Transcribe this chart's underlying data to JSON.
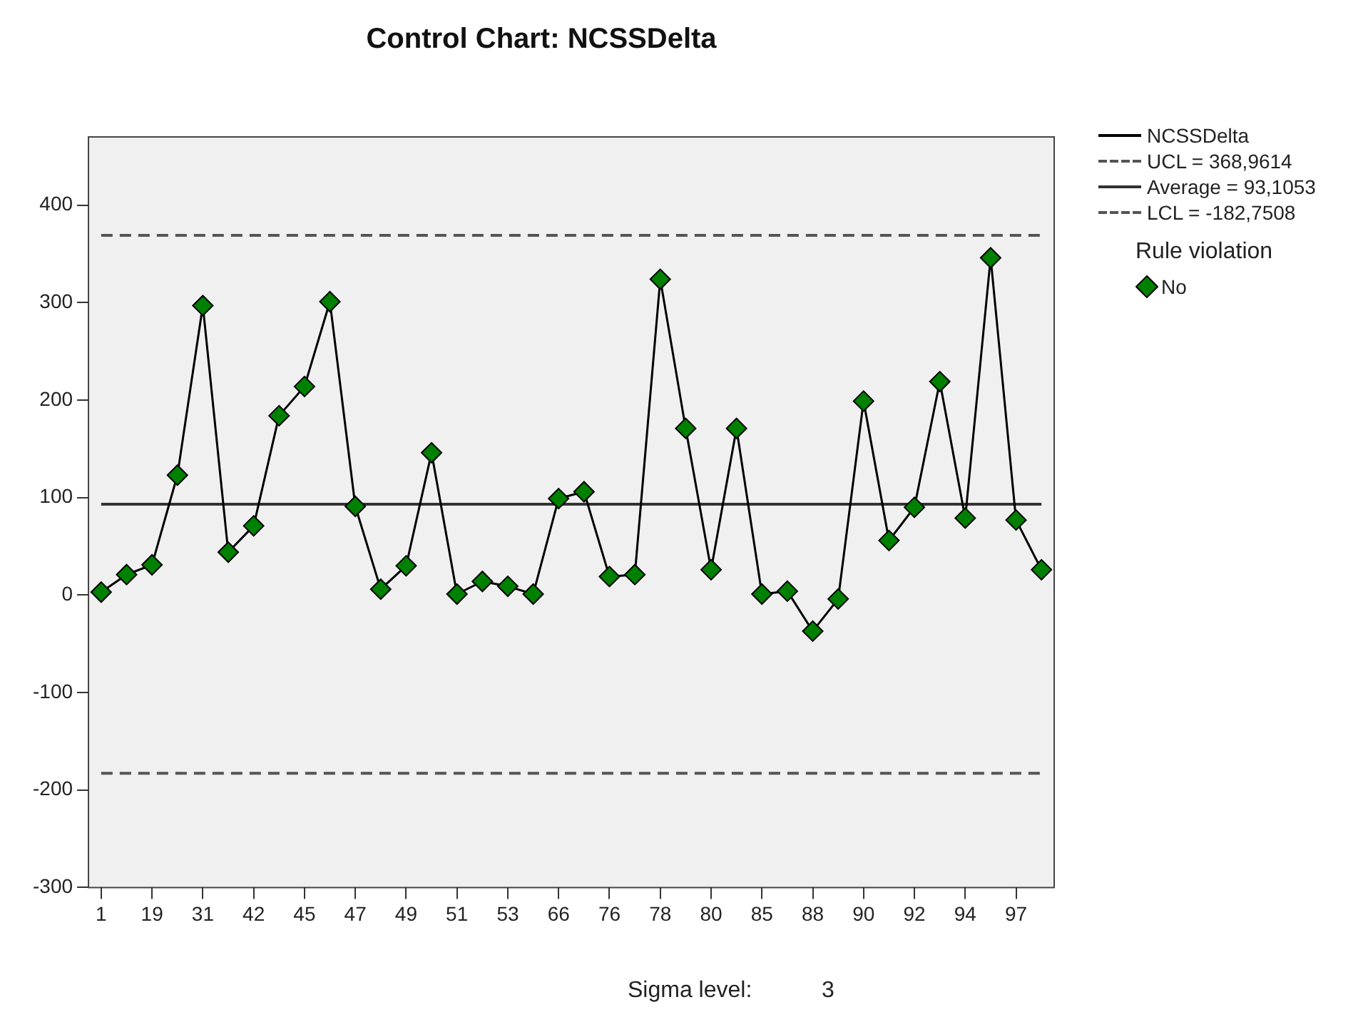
{
  "chart_data": {
    "type": "line",
    "title": "Control Chart: NCSSDelta",
    "categories": [
      "1",
      null,
      "19",
      null,
      "31",
      null,
      "42",
      null,
      "45",
      null,
      "47",
      null,
      "49",
      null,
      "51",
      null,
      "53",
      null,
      "66",
      null,
      "76",
      null,
      "78",
      null,
      "80",
      null,
      "85",
      null,
      "88",
      null,
      "90",
      null,
      "92",
      null,
      "94",
      null,
      "97",
      null
    ],
    "series": [
      {
        "name": "NCSSDelta",
        "color": "#000000",
        "marker": "none",
        "values": [
          3,
          21,
          31,
          123,
          297,
          44,
          71,
          184,
          214,
          301,
          91,
          6,
          30,
          146,
          1,
          14,
          9,
          1,
          99,
          106,
          19,
          21,
          324,
          171,
          26,
          171,
          1,
          4,
          -37,
          -4,
          199,
          56,
          90,
          219,
          79,
          346,
          77,
          26
        ]
      },
      {
        "name": "No",
        "type": "scatter",
        "color": "#008000",
        "marker": "diamond",
        "values": [
          3,
          21,
          31,
          123,
          297,
          44,
          71,
          184,
          214,
          301,
          91,
          6,
          30,
          146,
          1,
          14,
          9,
          1,
          99,
          106,
          19,
          21,
          324,
          171,
          26,
          171,
          1,
          4,
          -37,
          -4,
          199,
          56,
          90,
          219,
          79,
          346,
          77,
          26
        ]
      }
    ],
    "ylim": [
      -300,
      470
    ],
    "yticks": [
      -300,
      -200,
      -100,
      0,
      100,
      200,
      300,
      400
    ],
    "ref_lines": [
      {
        "axis": "y",
        "value": 368.9614,
        "label": "UCL = 368,9614",
        "color": "#555555",
        "line_style": "dashed"
      },
      {
        "axis": "y",
        "value": 93.1053,
        "label": "Average = 93,1053",
        "color": "#333333",
        "line_style": "solid"
      },
      {
        "axis": "y",
        "value": -182.7508,
        "label": "LCL = -182,7508",
        "color": "#555555",
        "line_style": "dashed"
      }
    ],
    "legend": "right",
    "legend_title": "Rule violation",
    "grid": false,
    "annotations": [
      "Sigma level:",
      "3"
    ]
  }
}
